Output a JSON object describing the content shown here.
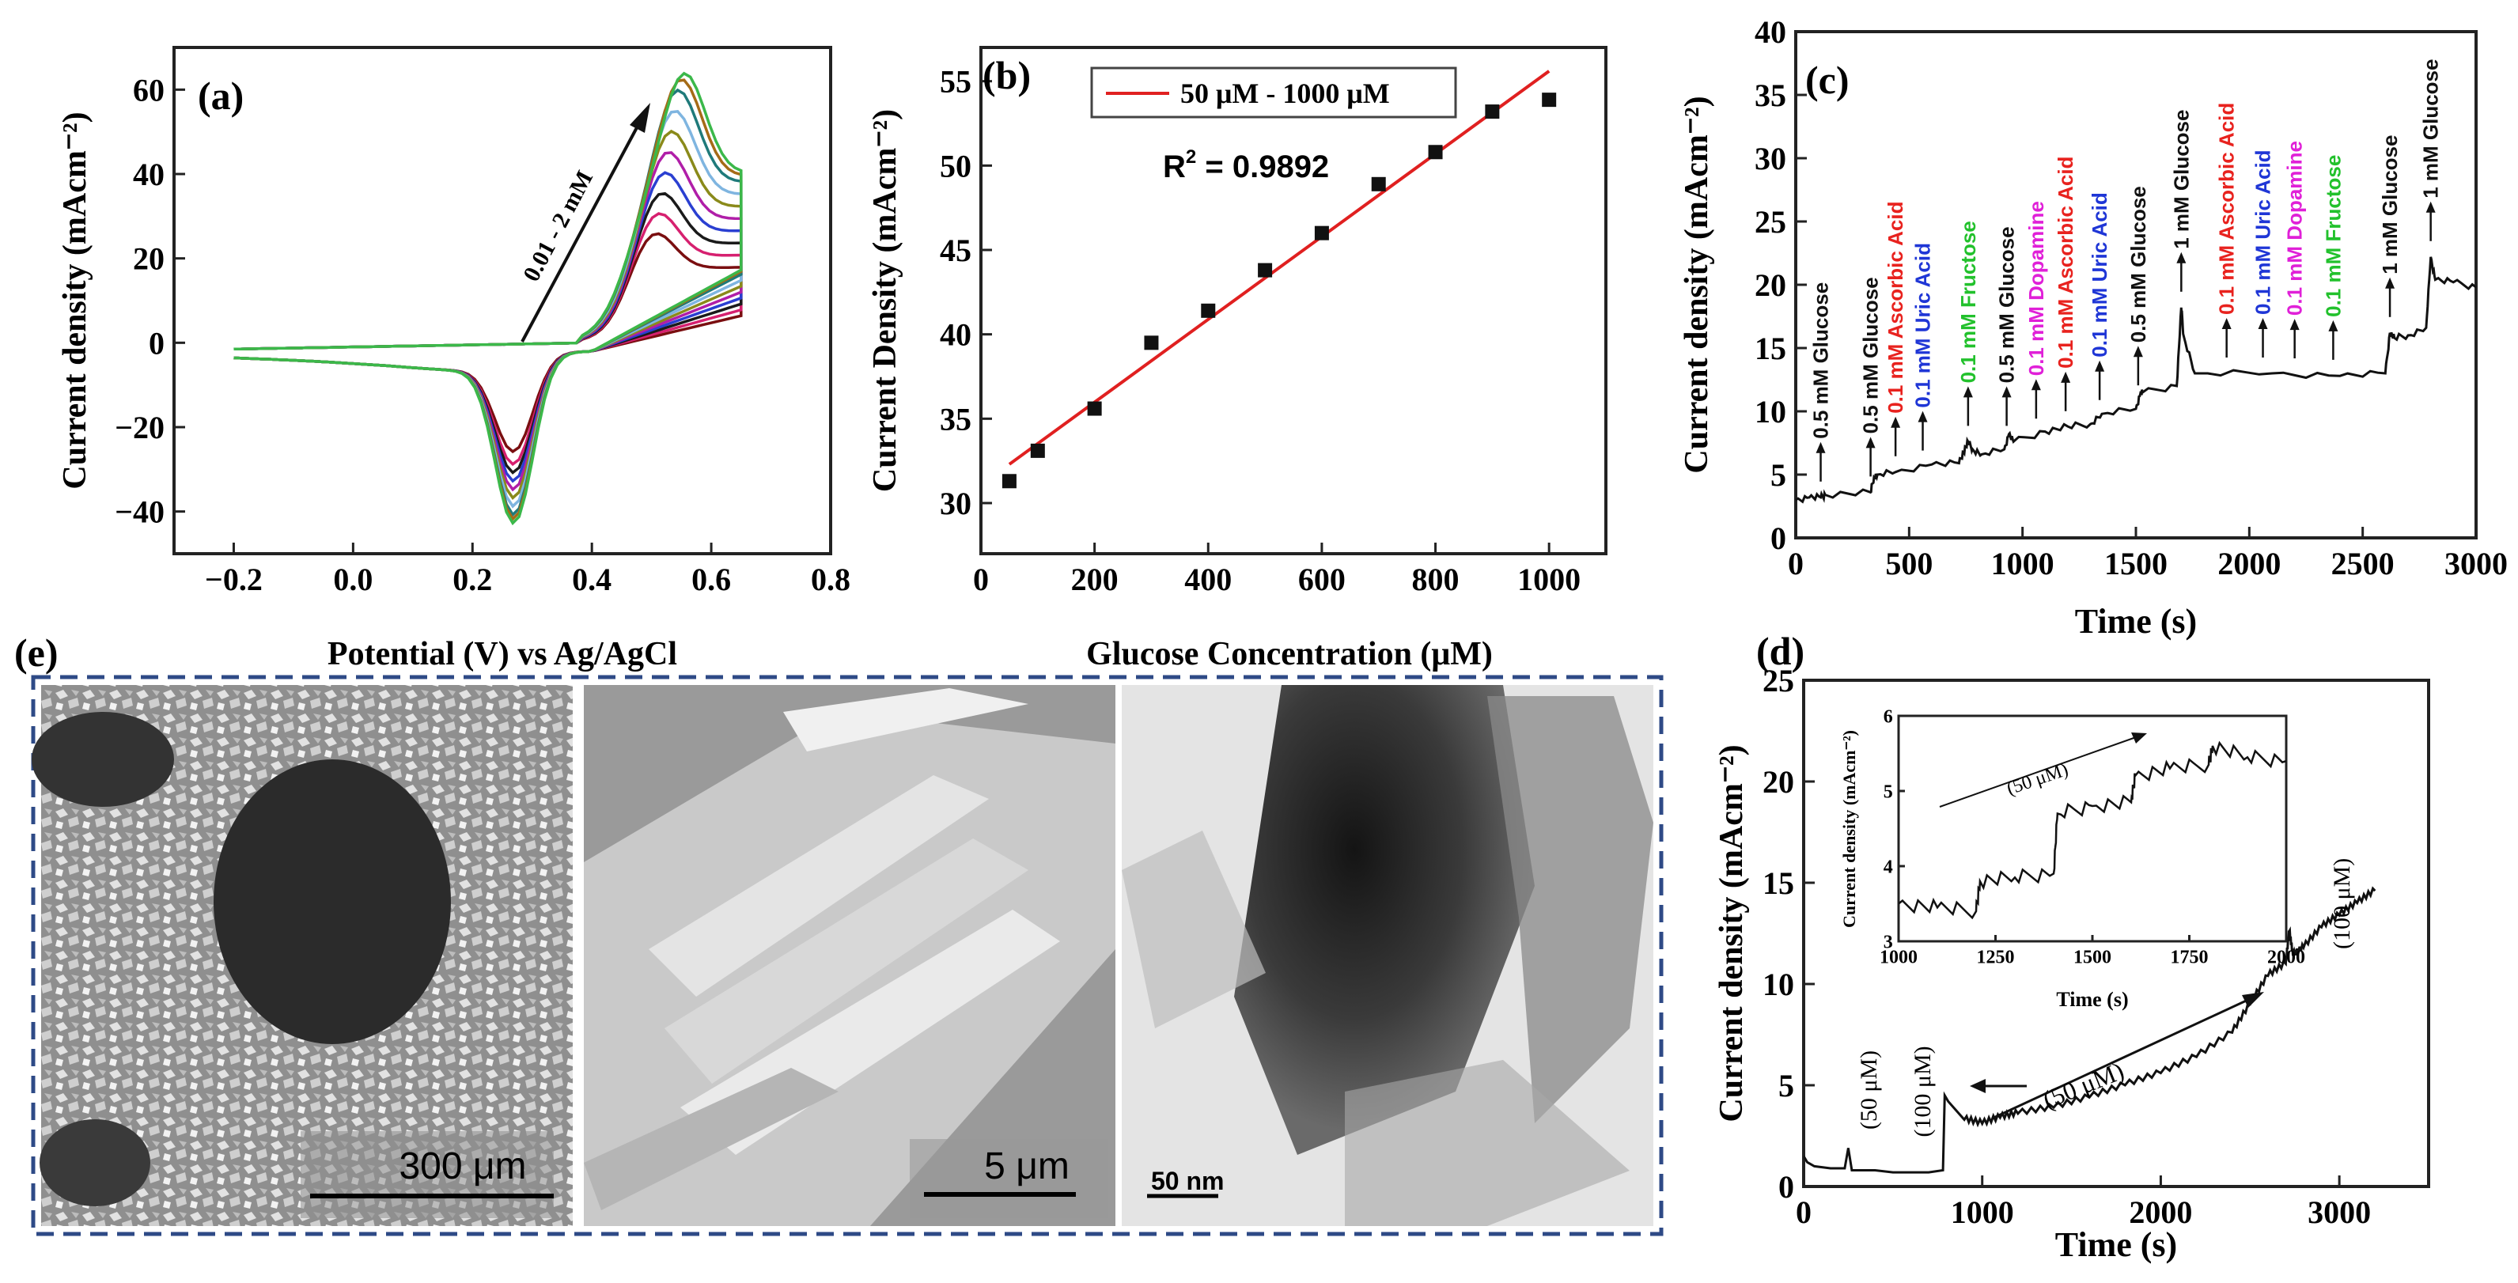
{
  "figure_caption": "",
  "chart_data": [
    {
      "id": "a",
      "panel_label": "(a)",
      "type": "line",
      "xlabel": "Potential (V) vs Ag/AgCl",
      "ylabel": "Current density (mAcm⁻²)",
      "xlim": [
        -0.3,
        0.8
      ],
      "ylim": [
        -50,
        70
      ],
      "xticks": [
        -0.2,
        0.0,
        0.2,
        0.4,
        0.6,
        0.8
      ],
      "xtick_labels": [
        "−0.2",
        "0.0",
        "0.2",
        "0.4",
        "0.6",
        "0.8"
      ],
      "yticks": [
        -40,
        -20,
        0,
        20,
        40,
        60
      ],
      "ytick_labels": [
        "−40",
        "−20",
        "0",
        "20",
        "40",
        "60"
      ],
      "annotation": "0.01 - 2 mM",
      "cv_curves": [
        {
          "color": "#7a0e10",
          "peak_anodic": 24,
          "peak_cathodic": -22
        },
        {
          "color": "#d6206f",
          "peak_anodic": 28,
          "peak_cathodic": -25
        },
        {
          "color": "#1a1a1a",
          "peak_anodic": 32,
          "peak_cathodic": -27
        },
        {
          "color": "#2a3fd1",
          "peak_anodic": 36,
          "peak_cathodic": -29
        },
        {
          "color": "#b01ea8",
          "peak_anodic": 40,
          "peak_cathodic": -31
        },
        {
          "color": "#8a8a1a",
          "peak_anodic": 44,
          "peak_cathodic": -33
        },
        {
          "color": "#7fb5e0",
          "peak_anodic": 48,
          "peak_cathodic": -35
        },
        {
          "color": "#1f7a7a",
          "peak_anodic": 52,
          "peak_cathodic": -37
        },
        {
          "color": "#a56b17",
          "peak_anodic": 54,
          "peak_cathodic": -38
        },
        {
          "color": "#3bb84a",
          "peak_anodic": 55,
          "peak_cathodic": -39
        }
      ]
    },
    {
      "id": "b",
      "panel_label": "(b)",
      "type": "scatter",
      "xlabel": "Glucose Concentration (μM)",
      "ylabel": "Current Density (mAcm⁻²)",
      "xlim": [
        0,
        1100
      ],
      "ylim": [
        27,
        57
      ],
      "xticks": [
        0,
        200,
        400,
        600,
        800,
        1000
      ],
      "xtick_labels": [
        "0",
        "200",
        "400",
        "600",
        "800",
        "1000"
      ],
      "yticks": [
        30,
        35,
        40,
        45,
        50,
        55
      ],
      "ytick_labels": [
        "30",
        "35",
        "40",
        "45",
        "50",
        "55"
      ],
      "x": [
        50,
        100,
        200,
        300,
        400,
        500,
        600,
        700,
        800,
        900,
        1000
      ],
      "y": [
        31.3,
        33.1,
        35.6,
        39.5,
        41.4,
        43.8,
        46.0,
        48.9,
        50.8,
        53.2,
        53.9
      ],
      "fit": {
        "x": [
          50,
          1000
        ],
        "y": [
          32.3,
          55.6
        ],
        "color": "#e02020",
        "name": "50 μM - 1000 μM"
      },
      "r2_label": "R",
      "r2_sup": "2",
      "r2_value": " = 0.9892"
    },
    {
      "id": "c",
      "panel_label": "(c)",
      "type": "line",
      "xlabel": "Time (s)",
      "ylabel": "Current density (mAcm⁻²)",
      "xlim": [
        0,
        3000
      ],
      "ylim": [
        0,
        40
      ],
      "xticks": [
        0,
        500,
        1000,
        1500,
        2000,
        2500,
        3000
      ],
      "xtick_labels": [
        "0",
        "500",
        "1000",
        "1500",
        "2000",
        "2500",
        "3000"
      ],
      "yticks": [
        0,
        5,
        10,
        15,
        20,
        25,
        30,
        35,
        40
      ],
      "ytick_labels": [
        "0",
        "5",
        "10",
        "15",
        "20",
        "25",
        "30",
        "35",
        "40"
      ],
      "x": [
        0,
        60,
        110,
        130,
        330,
        345,
        360,
        440,
        600,
        720,
        740,
        760,
        780,
        820,
        920,
        940,
        960,
        1100,
        1200,
        1300,
        1350,
        1500,
        1520,
        1530,
        1680,
        1700,
        1710,
        1760,
        2100,
        2400,
        2600,
        2620,
        2640,
        2700,
        2780,
        2800,
        2820,
        2900,
        3000
      ],
      "y": [
        3.0,
        3.2,
        3.2,
        3.4,
        3.6,
        4.8,
        5.0,
        5.2,
        5.8,
        5.9,
        6.8,
        7.6,
        7.0,
        6.6,
        7.0,
        8.2,
        7.6,
        8.4,
        8.8,
        9.0,
        9.8,
        10.2,
        11.4,
        11.5,
        12.0,
        18.2,
        16.0,
        13.0,
        13.0,
        12.8,
        13.0,
        16.2,
        15.8,
        16.0,
        16.6,
        22.2,
        20.4,
        20.2,
        19.8
      ],
      "events": [
        {
          "x": 110,
          "label": "0.5 mM Glucose",
          "color": "#111111"
        },
        {
          "x": 330,
          "label": "0.5 mM Glucose",
          "color": "#111111"
        },
        {
          "x": 440,
          "label": "0.1 mM Ascorbic Acid",
          "color": "#e8221e"
        },
        {
          "x": 560,
          "label": "0.1 mM Uric Acid",
          "color": "#1f36d6"
        },
        {
          "x": 760,
          "label": "0.1 mM Fructose",
          "color": "#22c12c"
        },
        {
          "x": 930,
          "label": "0.5 mM Glucose",
          "color": "#111111"
        },
        {
          "x": 1060,
          "label": "0.1 mM Dopamine",
          "color": "#e020d8"
        },
        {
          "x": 1190,
          "label": "0.1 mM Ascorbic Acid",
          "color": "#e8221e"
        },
        {
          "x": 1340,
          "label": "0.1 mM Uric Acid",
          "color": "#1f36d6"
        },
        {
          "x": 1510,
          "label": "0.5 mM Glucose",
          "color": "#111111"
        },
        {
          "x": 1700,
          "label": "1 mM Glucose",
          "color": "#111111"
        },
        {
          "x": 1900,
          "label": "0.1 mM Ascorbic Acid",
          "color": "#e8221e"
        },
        {
          "x": 2060,
          "label": "0.1 mM Uric Acid",
          "color": "#1f36d6"
        },
        {
          "x": 2200,
          "label": "0.1 mM Dopamine",
          "color": "#e020d8"
        },
        {
          "x": 2370,
          "label": "0.1 mM Fructose",
          "color": "#22c12c"
        },
        {
          "x": 2620,
          "label": "1 mM Glucose",
          "color": "#111111"
        },
        {
          "x": 2800,
          "label": "1 mM Glucose",
          "color": "#111111"
        }
      ]
    },
    {
      "id": "d",
      "panel_label": "(d)",
      "type": "line",
      "xlabel": "Time (s)",
      "ylabel": "Current density (mAcm⁻²)",
      "xlim": [
        0,
        3500
      ],
      "ylim": [
        0,
        25
      ],
      "xticks": [
        0,
        1000,
        2000,
        3000
      ],
      "xtick_labels": [
        "0",
        "1000",
        "2000",
        "3000"
      ],
      "yticks": [
        0,
        5,
        10,
        15,
        20,
        25
      ],
      "ytick_labels": [
        "0",
        "5",
        "10",
        "15",
        "20",
        "25"
      ],
      "x": [
        0,
        20,
        60,
        150,
        230,
        250,
        270,
        300,
        400,
        500,
        600,
        700,
        780,
        790,
        810,
        900,
        1000,
        1100,
        1200,
        1400,
        1600,
        1800,
        2000,
        2200,
        2400,
        2500,
        2600,
        2700,
        2720,
        2740,
        2800,
        2900,
        3000,
        3100,
        3200
      ],
      "y": [
        1.5,
        1.2,
        1.0,
        0.9,
        0.9,
        1.9,
        0.8,
        0.8,
        0.8,
        0.7,
        0.7,
        0.7,
        0.8,
        4.5,
        4.2,
        3.3,
        3.1,
        3.4,
        3.6,
        3.9,
        4.4,
        5.0,
        5.6,
        6.4,
        7.6,
        9.0,
        10.4,
        11.0,
        12.6,
        11.4,
        11.8,
        12.8,
        13.4,
        14.0,
        14.6
      ],
      "annotations": [
        "(50 μM)",
        "(100 μM)",
        "(50 μM)",
        "(100 μM)"
      ],
      "inset": {
        "type": "line",
        "xlabel": "Time (s)",
        "ylabel": "Current density (mAcm⁻²)",
        "xlim": [
          1000,
          2000
        ],
        "ylim": [
          3,
          6
        ],
        "xticks": [
          1000,
          1250,
          1500,
          1750,
          2000
        ],
        "xtick_labels": [
          "1000",
          "1250",
          "1500",
          "1750",
          "2000"
        ],
        "yticks": [
          3,
          4,
          5,
          6
        ],
        "ytick_labels": [
          "3",
          "4",
          "5",
          "6"
        ],
        "annotation": "(50 μM)",
        "x": [
          1000,
          1100,
          1200,
          1210,
          1300,
          1400,
          1410,
          1500,
          1600,
          1610,
          1700,
          1800,
          1810,
          1900,
          2000
        ],
        "y": [
          3.5,
          3.45,
          3.4,
          3.8,
          3.85,
          3.9,
          4.7,
          4.8,
          4.85,
          5.2,
          5.3,
          5.35,
          5.6,
          5.45,
          5.4
        ]
      }
    }
  ],
  "panel_e": {
    "panel_label": "(e)",
    "images": [
      {
        "scale_label": "300 μm"
      },
      {
        "scale_label": "5 μm"
      },
      {
        "scale_label": "50 nm"
      }
    ]
  }
}
